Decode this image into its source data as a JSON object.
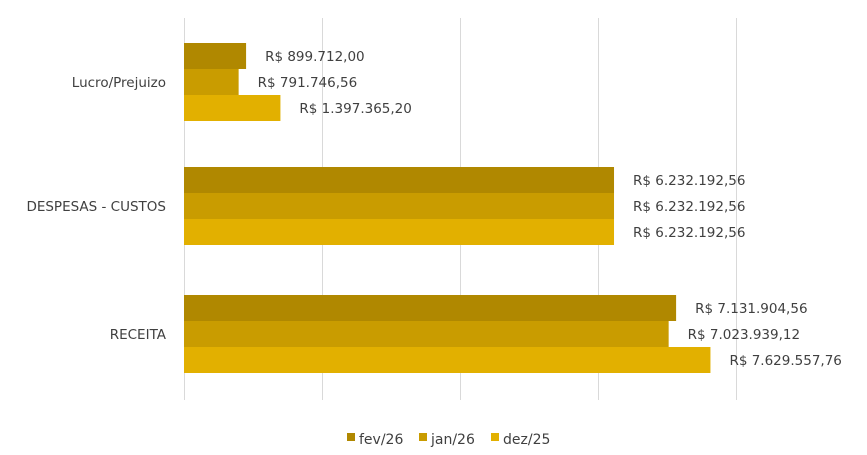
{
  "chart_data": {
    "type": "bar",
    "orientation": "horizontal",
    "categories": [
      "Lucro/Prejuizo",
      "DESPESAS - CUSTOS",
      "RECEITA"
    ],
    "series": [
      {
        "name": "fev/26",
        "color": "#B08800",
        "values": [
          899712.0,
          6232192.56,
          7131904.56
        ],
        "labels": [
          "R$ 899.712,00",
          "R$ 6.232.192,56",
          "R$ 7.131.904,56"
        ]
      },
      {
        "name": "jan/26",
        "color": "#C99C00",
        "values": [
          791746.56,
          6232192.56,
          7023939.12
        ],
        "labels": [
          "R$ 791.746,56",
          "R$ 6.232.192,56",
          "R$ 7.023.939,12"
        ]
      },
      {
        "name": "dez/25",
        "color": "#E2B000",
        "values": [
          1397365.2,
          6232192.56,
          7629557.76
        ],
        "labels": [
          "R$ 1.397.365,20",
          "R$ 6.232.192,56",
          "R$ 7.629.557,76"
        ]
      }
    ],
    "xlim": [
      0,
      10000000
    ],
    "grid": true,
    "legend_position": "bottom"
  }
}
